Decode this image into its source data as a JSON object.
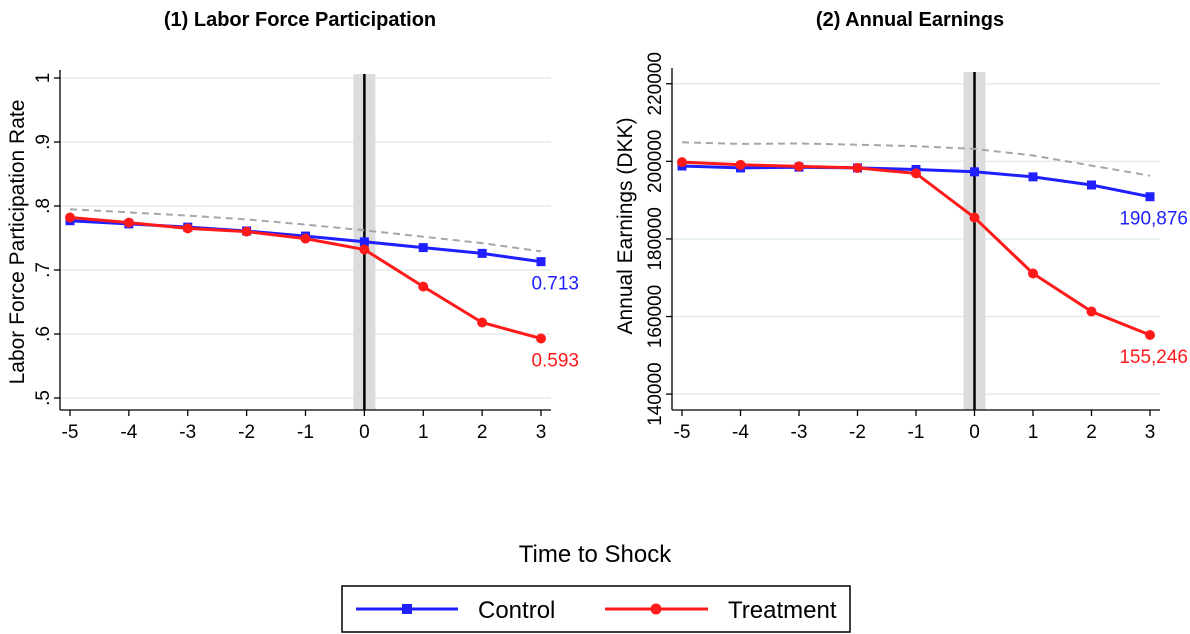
{
  "figure": {
    "xlabel": "Time to Shock",
    "legend": {
      "placement": "bottom-center",
      "entries": [
        {
          "name": "Control",
          "color": "#1f1fff",
          "marker": "square"
        },
        {
          "name": "Treatment",
          "color": "#ff1a1a",
          "marker": "circle"
        }
      ]
    }
  },
  "chart_data": [
    {
      "type": "line",
      "title": "(1) Labor Force Participation",
      "xlabel": "",
      "ylabel": "Labor Force Participation Rate",
      "x": [
        -5,
        -4,
        -3,
        -2,
        -1,
        0,
        1,
        2,
        3
      ],
      "x_ticks": [
        "-5",
        "-4",
        "-3",
        "-2",
        "-1",
        "0",
        "1",
        "2",
        "3"
      ],
      "ylim": [
        0.5,
        1.0
      ],
      "y_ticks": [
        ".5",
        ".6",
        ".7",
        ".8",
        ".9",
        "1"
      ],
      "y_tick_values": [
        0.5,
        0.6,
        0.7,
        0.8,
        0.9,
        1.0
      ],
      "grid": true,
      "shock_x": 0,
      "series": [
        {
          "name": "Control",
          "color": "#1f1fff",
          "marker": "square",
          "values": [
            0.777,
            0.772,
            0.767,
            0.761,
            0.753,
            0.744,
            0.735,
            0.726,
            0.713
          ]
        },
        {
          "name": "Treatment",
          "color": "#ff1a1a",
          "marker": "circle",
          "values": [
            0.782,
            0.774,
            0.765,
            0.76,
            0.749,
            0.732,
            0.674,
            0.618,
            0.593
          ]
        },
        {
          "name": "",
          "color": "#a6a6a6",
          "style": "dashed",
          "values": [
            0.795,
            0.79,
            0.785,
            0.779,
            0.771,
            0.762,
            0.752,
            0.742,
            0.729
          ]
        }
      ],
      "end_labels": [
        {
          "series": "Control",
          "text": "0.713",
          "color": "#1f1fff"
        },
        {
          "series": "Treatment",
          "text": "0.593",
          "color": "#ff1a1a"
        }
      ]
    },
    {
      "type": "line",
      "title": "(2) Annual Earnings",
      "xlabel": "",
      "ylabel": "Annual Earnings (DKK)",
      "x": [
        -5,
        -4,
        -3,
        -2,
        -1,
        0,
        1,
        2,
        3
      ],
      "x_ticks": [
        "-5",
        "-4",
        "-3",
        "-2",
        "-1",
        "0",
        "1",
        "2",
        "3"
      ],
      "ylim": [
        139000,
        222000
      ],
      "y_ticks": [
        "140000",
        "160000",
        "180000",
        "200000",
        "220000"
      ],
      "y_tick_values": [
        140000,
        160000,
        180000,
        200000,
        220000
      ],
      "grid": true,
      "shock_x": 0,
      "series": [
        {
          "name": "Control",
          "color": "#1f1fff",
          "marker": "square",
          "values": [
            198800,
            198300,
            198500,
            198300,
            197900,
            197300,
            196000,
            193900,
            190876
          ]
        },
        {
          "name": "Treatment",
          "color": "#ff1a1a",
          "marker": "circle",
          "values": [
            199800,
            199100,
            198700,
            198300,
            196900,
            185500,
            171100,
            161300,
            155246
          ]
        },
        {
          "name": "",
          "color": "#a6a6a6",
          "style": "dashed",
          "values": [
            204900,
            204500,
            204600,
            204300,
            203900,
            203200,
            201500,
            198900,
            196300
          ]
        }
      ],
      "end_labels": [
        {
          "series": "Control",
          "text": "190,876",
          "color": "#1f1fff"
        },
        {
          "series": "Treatment",
          "text": "155,246",
          "color": "#ff1a1a"
        }
      ]
    }
  ]
}
